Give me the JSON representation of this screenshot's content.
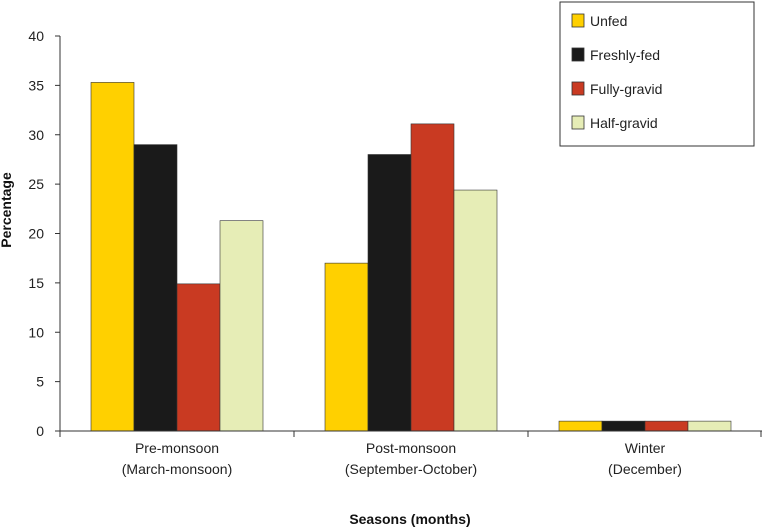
{
  "chart_data": {
    "type": "bar",
    "title": "",
    "xlabel": "Seasons (months)",
    "ylabel": "Percentage",
    "ylim": [
      0,
      40
    ],
    "yticks": [
      0,
      5,
      10,
      15,
      20,
      25,
      30,
      35,
      40
    ],
    "categories": [
      {
        "line1": "Pre-monsoon",
        "line2": "(March-monsoon)"
      },
      {
        "line1": "Post-monsoon",
        "line2": "(September-October)"
      },
      {
        "line1": "Winter",
        "line2": "(December)"
      }
    ],
    "series": [
      {
        "name": "Unfed",
        "color": "#FFD000",
        "values": [
          35.3,
          17.0,
          1.0
        ]
      },
      {
        "name": "Freshly-fed",
        "color": "#1A1A1A",
        "values": [
          29.0,
          28.0,
          1.0
        ]
      },
      {
        "name": "Fully-gravid",
        "color": "#C93A22",
        "values": [
          14.9,
          31.1,
          1.0
        ]
      },
      {
        "name": "Half-gravid",
        "color": "#E6EDB6",
        "values": [
          21.3,
          24.4,
          1.0
        ]
      }
    ],
    "legend": "top-right",
    "grid": false
  }
}
